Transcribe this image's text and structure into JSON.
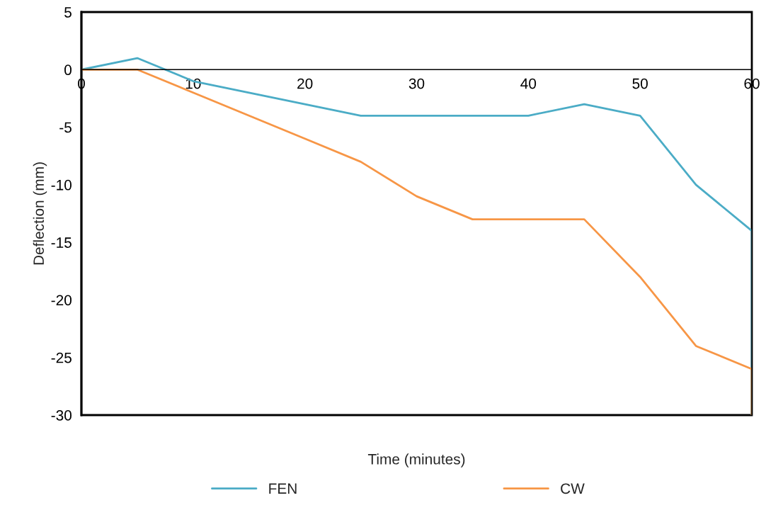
{
  "chart_data": {
    "type": "line",
    "xlabel": "Time (minutes)",
    "ylabel": "Deflection (mm)",
    "xlim": [
      0,
      60
    ],
    "xticks": [
      0,
      10,
      20,
      30,
      40,
      50,
      60
    ],
    "ylim": [
      -30,
      5
    ],
    "yticks": [
      -30,
      -25,
      -20,
      -15,
      -10,
      -5,
      0,
      5
    ],
    "grid": false,
    "legend": "bottom",
    "marker": "none",
    "line_style": "solid",
    "series": [
      {
        "name": "FEN",
        "color": "#4bacc6",
        "x": [
          0,
          5,
          10,
          15,
          20,
          25,
          30,
          35,
          40,
          45,
          50,
          55,
          60,
          60
        ],
        "values": [
          0,
          1,
          -1,
          -2,
          -3,
          -4,
          -4,
          -4,
          -4,
          -3,
          -4,
          -10,
          -14,
          -30
        ]
      },
      {
        "name": "CW",
        "color": "#f79646",
        "x": [
          0,
          5,
          10,
          15,
          20,
          25,
          30,
          35,
          40,
          45,
          50,
          55,
          60,
          60
        ],
        "values": [
          0,
          0,
          -2,
          -4,
          -6,
          -8,
          -11,
          -13,
          -13,
          -13,
          -18,
          -24,
          -26,
          -30
        ]
      }
    ]
  }
}
